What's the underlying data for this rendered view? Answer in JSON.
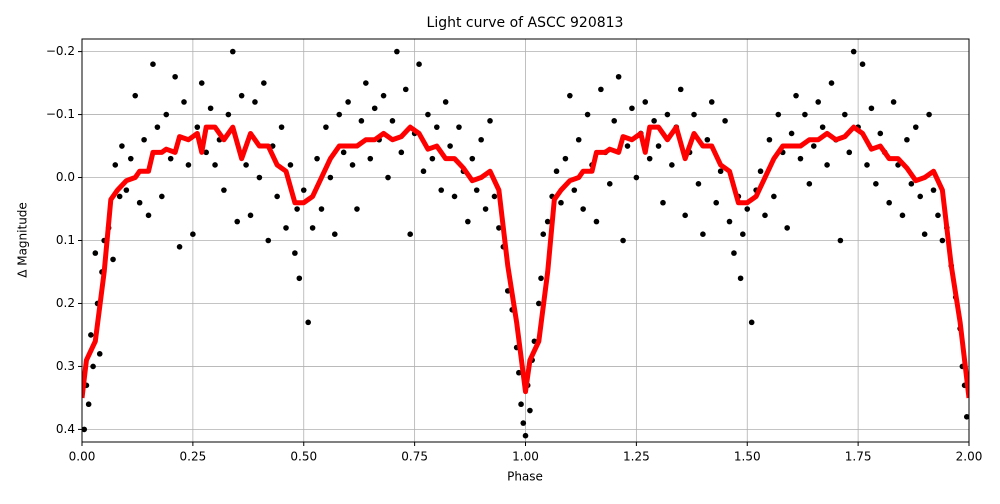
{
  "chart_data": {
    "type": "scatter",
    "title": "Light curve of ASCC 920813",
    "x_label": "Phase",
    "y_label": "Δ Magnitude",
    "xlim": [
      0,
      2
    ],
    "ylim": [
      0.42,
      -0.22
    ],
    "xticks": [
      {
        "value": 0,
        "label": "0.00"
      },
      0.25,
      {
        "value": 0.5,
        "label": "0.50"
      },
      0.75,
      {
        "value": 1,
        "label": "1.00"
      },
      1.25,
      {
        "value": 1.5,
        "label": "1.50"
      },
      1.75,
      {
        "value": 2,
        "label": "2.00"
      }
    ],
    "yticks": [
      {
        "value": -0.2,
        "label": "−0.2"
      },
      {
        "value": -0.1,
        "label": "−0.1"
      },
      {
        "value": 0,
        "label": "0.0"
      },
      0.1,
      0.2,
      0.3,
      0.4
    ],
    "grid": true,
    "series": [
      {
        "type": "scatter",
        "color": "#000000",
        "x": [
          0.005,
          0.01,
          0.015,
          0.02,
          0.025,
          0.03,
          0.035,
          0.04,
          0.045,
          0.05,
          0.06,
          0.07,
          0.075,
          0.085,
          0.09,
          0.1,
          0.11,
          0.12,
          0.13,
          0.14,
          0.15,
          0.16,
          0.17,
          0.18,
          0.19,
          0.2,
          0.21,
          0.22,
          0.23,
          0.24,
          0.25,
          0.26,
          0.27,
          0.28,
          0.29,
          0.3,
          0.31,
          0.32,
          0.33,
          0.34,
          0.35,
          0.36,
          0.37,
          0.38,
          0.39,
          0.4,
          0.41,
          0.42,
          0.43,
          0.44,
          0.45,
          0.46,
          0.47,
          0.48,
          0.485,
          0.49,
          0.5,
          0.51,
          0.52,
          0.53,
          0.54,
          0.55,
          0.56,
          0.57,
          0.58,
          0.59,
          0.6,
          0.61,
          0.62,
          0.63,
          0.64,
          0.65,
          0.66,
          0.67,
          0.68,
          0.69,
          0.7,
          0.71,
          0.72,
          0.73,
          0.74,
          0.75,
          0.76,
          0.77,
          0.78,
          0.79,
          0.8,
          0.81,
          0.82,
          0.83,
          0.84,
          0.85,
          0.86,
          0.87,
          0.88,
          0.89,
          0.9,
          0.91,
          0.92,
          0.93,
          0.94,
          0.95,
          0.96,
          0.97,
          0.98,
          0.985,
          0.99,
          0.995,
          1.0,
          1.005,
          1.01,
          1.015,
          1.02,
          1.03,
          1.035,
          1.04,
          1.05,
          1.06,
          1.07,
          1.08,
          1.09,
          1.1,
          1.11,
          1.12,
          1.13,
          1.14,
          1.15,
          1.16,
          1.17,
          1.18,
          1.19,
          1.2,
          1.21,
          1.22,
          1.23,
          1.24,
          1.25,
          1.26,
          1.27,
          1.28,
          1.29,
          1.3,
          1.31,
          1.32,
          1.33,
          1.34,
          1.35,
          1.36,
          1.37,
          1.38,
          1.39,
          1.4,
          1.41,
          1.42,
          1.43,
          1.44,
          1.45,
          1.46,
          1.47,
          1.48,
          1.485,
          1.49,
          1.5,
          1.51,
          1.52,
          1.53,
          1.54,
          1.55,
          1.56,
          1.57,
          1.58,
          1.59,
          1.6,
          1.61,
          1.62,
          1.63,
          1.64,
          1.65,
          1.66,
          1.67,
          1.68,
          1.69,
          1.7,
          1.71,
          1.72,
          1.73,
          1.74,
          1.75,
          1.76,
          1.77,
          1.78,
          1.79,
          1.8,
          1.81,
          1.82,
          1.83,
          1.84,
          1.85,
          1.86,
          1.87,
          1.88,
          1.89,
          1.9,
          1.91,
          1.92,
          1.93,
          1.94,
          1.95,
          1.96,
          1.97,
          1.98,
          1.985,
          1.99,
          1.995
        ],
        "values": [
          0.4,
          0.33,
          0.36,
          0.25,
          0.3,
          0.12,
          0.2,
          0.28,
          0.15,
          0.1,
          0.08,
          0.13,
          -0.02,
          0.03,
          -0.05,
          0.02,
          -0.03,
          -0.13,
          0.04,
          -0.06,
          0.06,
          -0.18,
          -0.08,
          0.03,
          -0.1,
          -0.03,
          -0.16,
          0.11,
          -0.12,
          -0.02,
          0.09,
          -0.08,
          -0.15,
          -0.04,
          -0.11,
          -0.02,
          -0.06,
          0.02,
          -0.1,
          -0.2,
          0.07,
          -0.13,
          -0.02,
          0.06,
          -0.12,
          0.0,
          -0.15,
          0.1,
          -0.05,
          0.03,
          -0.08,
          0.08,
          -0.02,
          0.12,
          0.05,
          0.16,
          0.02,
          0.23,
          0.08,
          -0.03,
          0.05,
          -0.08,
          0.0,
          0.09,
          -0.1,
          -0.04,
          -0.12,
          -0.02,
          0.05,
          -0.09,
          -0.15,
          -0.03,
          -0.11,
          -0.06,
          -0.13,
          0.0,
          -0.09,
          -0.2,
          -0.04,
          -0.14,
          0.09,
          -0.07,
          -0.18,
          -0.01,
          -0.1,
          -0.03,
          -0.08,
          0.02,
          -0.12,
          -0.05,
          0.03,
          -0.08,
          -0.01,
          0.07,
          -0.03,
          0.02,
          -0.06,
          0.05,
          -0.09,
          0.03,
          0.08,
          0.11,
          0.18,
          0.21,
          0.27,
          0.31,
          0.36,
          0.39,
          0.41,
          0.33,
          0.37,
          0.29,
          0.26,
          0.2,
          0.16,
          0.09,
          0.07,
          0.03,
          -0.01,
          0.04,
          -0.03,
          -0.13,
          0.02,
          -0.06,
          0.05,
          -0.1,
          -0.02,
          0.07,
          -0.14,
          -0.04,
          0.01,
          -0.09,
          -0.16,
          0.1,
          -0.05,
          -0.11,
          0.0,
          -0.07,
          -0.12,
          -0.03,
          -0.09,
          -0.05,
          0.04,
          -0.1,
          -0.02,
          -0.08,
          -0.14,
          0.06,
          -0.04,
          -0.1,
          0.01,
          0.09,
          -0.06,
          -0.12,
          0.04,
          -0.01,
          -0.09,
          0.07,
          0.12,
          0.03,
          0.16,
          0.09,
          0.05,
          0.23,
          0.02,
          -0.01,
          0.06,
          -0.06,
          0.03,
          -0.1,
          -0.04,
          0.08,
          -0.07,
          -0.13,
          -0.03,
          -0.1,
          0.01,
          -0.05,
          -0.12,
          -0.08,
          -0.02,
          -0.15,
          -0.06,
          0.1,
          -0.1,
          -0.04,
          -0.2,
          -0.08,
          -0.18,
          -0.02,
          -0.11,
          0.01,
          -0.07,
          -0.04,
          0.04,
          -0.12,
          -0.02,
          0.06,
          -0.06,
          0.01,
          -0.08,
          0.03,
          0.09,
          -0.1,
          0.02,
          0.06,
          0.1,
          0.08,
          0.14,
          0.19,
          0.24,
          0.3,
          0.33,
          0.38
        ]
      },
      {
        "type": "line",
        "color": "#ff0000",
        "x": [
          0,
          0.01,
          0.03,
          0.05,
          0.065,
          0.08,
          0.1,
          0.12,
          0.13,
          0.15,
          0.16,
          0.18,
          0.19,
          0.21,
          0.22,
          0.24,
          0.26,
          0.27,
          0.28,
          0.3,
          0.32,
          0.34,
          0.36,
          0.38,
          0.4,
          0.42,
          0.44,
          0.46,
          0.48,
          0.5,
          0.52,
          0.54,
          0.56,
          0.58,
          0.6,
          0.62,
          0.64,
          0.66,
          0.68,
          0.7,
          0.72,
          0.74,
          0.76,
          0.78,
          0.8,
          0.82,
          0.84,
          0.86,
          0.88,
          0.9,
          0.92,
          0.94,
          0.96,
          0.98,
          1.0,
          1.01,
          1.03,
          1.05,
          1.065,
          1.08,
          1.1,
          1.12,
          1.13,
          1.15,
          1.16,
          1.18,
          1.19,
          1.21,
          1.22,
          1.24,
          1.26,
          1.27,
          1.28,
          1.3,
          1.32,
          1.34,
          1.36,
          1.38,
          1.4,
          1.42,
          1.44,
          1.46,
          1.48,
          1.5,
          1.52,
          1.54,
          1.56,
          1.58,
          1.6,
          1.62,
          1.64,
          1.66,
          1.68,
          1.7,
          1.72,
          1.74,
          1.76,
          1.78,
          1.8,
          1.82,
          1.84,
          1.86,
          1.88,
          1.9,
          1.92,
          1.94,
          1.96,
          1.98,
          2.0
        ],
        "values": [
          0.35,
          0.29,
          0.26,
          0.15,
          0.035,
          0.02,
          0.005,
          0.0,
          -0.01,
          -0.01,
          -0.04,
          -0.04,
          -0.045,
          -0.04,
          -0.065,
          -0.06,
          -0.07,
          -0.04,
          -0.08,
          -0.08,
          -0.06,
          -0.08,
          -0.03,
          -0.07,
          -0.05,
          -0.05,
          -0.02,
          -0.01,
          0.04,
          0.04,
          0.03,
          0.0,
          -0.03,
          -0.05,
          -0.05,
          -0.05,
          -0.06,
          -0.06,
          -0.07,
          -0.06,
          -0.065,
          -0.08,
          -0.07,
          -0.045,
          -0.05,
          -0.03,
          -0.03,
          -0.015,
          0.005,
          0.0,
          -0.01,
          0.02,
          0.14,
          0.23,
          0.34,
          0.29,
          0.26,
          0.15,
          0.035,
          0.02,
          0.005,
          0.0,
          -0.01,
          -0.01,
          -0.04,
          -0.04,
          -0.045,
          -0.04,
          -0.065,
          -0.06,
          -0.07,
          -0.04,
          -0.08,
          -0.08,
          -0.06,
          -0.08,
          -0.03,
          -0.07,
          -0.05,
          -0.05,
          -0.02,
          -0.01,
          0.04,
          0.04,
          0.03,
          0.0,
          -0.03,
          -0.05,
          -0.05,
          -0.05,
          -0.06,
          -0.06,
          -0.07,
          -0.06,
          -0.065,
          -0.08,
          -0.07,
          -0.045,
          -0.05,
          -0.03,
          -0.03,
          -0.015,
          0.005,
          0.0,
          -0.01,
          0.02,
          0.14,
          0.23,
          0.35
        ]
      }
    ]
  }
}
